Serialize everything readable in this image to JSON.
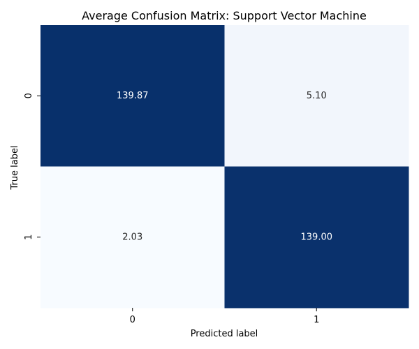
{
  "chart_data": {
    "type": "heatmap",
    "title": "Average Confusion Matrix: Support Vector Machine",
    "xlabel": "Predicted label",
    "ylabel": "True label",
    "x_categories": [
      "0",
      "1"
    ],
    "y_categories": [
      "0",
      "1"
    ],
    "values": [
      [
        139.87,
        5.1
      ],
      [
        2.03,
        139.0
      ]
    ],
    "value_labels": [
      [
        "139.87",
        "5.10"
      ],
      [
        "2.03",
        "139.00"
      ]
    ],
    "colormap": "Blues",
    "colorbar": false,
    "colors": {
      "low": "#f7fbff",
      "high": "#08306b",
      "text_on_dark": "#ffffff",
      "text_on_light": "#262626"
    }
  }
}
